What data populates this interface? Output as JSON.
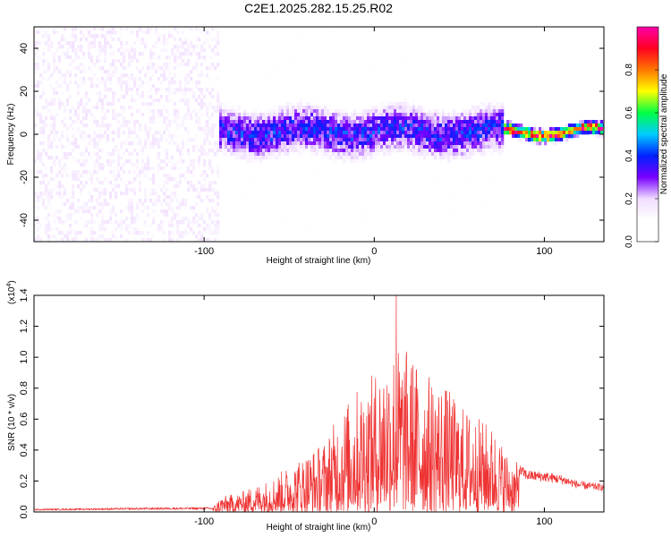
{
  "title": "C2E1.2025.282.15.25.R02",
  "colors": {
    "line": "#ee3333",
    "colorbar_stops": [
      "#ffffff",
      "#ffffff",
      "#f0dcff",
      "#7700ff",
      "#0022ff",
      "#00ccff",
      "#00ff44",
      "#ffff00",
      "#ff7700",
      "#ff0022",
      "#ff00aa"
    ]
  },
  "chart_data": [
    {
      "type": "heatmap",
      "panel": "spectrogram",
      "xlabel": "Height of straight line (km)",
      "ylabel": "Frequency (Hz)",
      "xlim": [
        -200,
        135
      ],
      "ylim": [
        -50,
        50
      ],
      "xticks": [
        -100,
        0,
        100
      ],
      "yticks": [
        -40,
        -20,
        0,
        20,
        40
      ],
      "xtick_labels": [
        "-100",
        "0",
        "100"
      ],
      "ytick_labels": [
        "-40",
        "-20",
        "0",
        "20",
        "40"
      ],
      "colorbar": {
        "label": "Normalized spectral amplitude",
        "range": [
          0,
          1
        ],
        "ticks": [
          0.0,
          0.2,
          0.4,
          0.6,
          0.8
        ],
        "tick_labels": [
          "0.0",
          "0.2",
          "0.4",
          "0.6",
          "0.8"
        ]
      },
      "description_regions": [
        {
          "x_range": [
            -200,
            -92
          ],
          "character": "broadband noise",
          "amplitude": 0.12
        },
        {
          "x_range": [
            -92,
            75
          ],
          "character": "band centered near 0 Hz",
          "center_hz": 2,
          "halfwidth_hz": 8,
          "amplitude": 0.35
        },
        {
          "x_range": [
            75,
            135
          ],
          "character": "narrow line near 2 Hz",
          "center_hz": 2,
          "halfwidth_hz": 2,
          "amplitude": 0.85
        }
      ]
    },
    {
      "type": "line",
      "panel": "snr",
      "xlabel": "Height of straight line (km)",
      "ylabel": "SNR (10 * v/v)",
      "scale_label": "(x10",
      "scale_exponent": "4",
      "scale_close": ")",
      "xlim": [
        -200,
        135
      ],
      "ylim": [
        0,
        1.4
      ],
      "xticks": [
        -100,
        0,
        100
      ],
      "yticks": [
        0.0,
        0.2,
        0.4,
        0.6,
        0.8,
        1.0,
        1.2,
        1.4
      ],
      "xtick_labels": [
        "-100",
        "0",
        "100"
      ],
      "ytick_labels": [
        "0.0",
        "0.2",
        "0.4",
        "0.6",
        "0.8",
        "1.0",
        "1.2",
        "1.4"
      ],
      "envelope": {
        "x": [
          -200,
          -160,
          -120,
          -95,
          -90,
          -80,
          -70,
          -60,
          -50,
          -40,
          -30,
          -20,
          -10,
          0,
          10,
          20,
          30,
          40,
          50,
          60,
          70,
          80,
          90,
          100,
          110,
          120,
          135
        ],
        "y": [
          0.02,
          0.025,
          0.03,
          0.03,
          0.1,
          0.12,
          0.17,
          0.22,
          0.3,
          0.38,
          0.45,
          0.65,
          0.8,
          0.9,
          1.1,
          1.05,
          0.9,
          0.85,
          0.7,
          0.62,
          0.55,
          0.35,
          0.27,
          0.26,
          0.24,
          0.2,
          0.18
        ]
      },
      "peak": {
        "x": 13,
        "y": 1.4
      }
    }
  ]
}
